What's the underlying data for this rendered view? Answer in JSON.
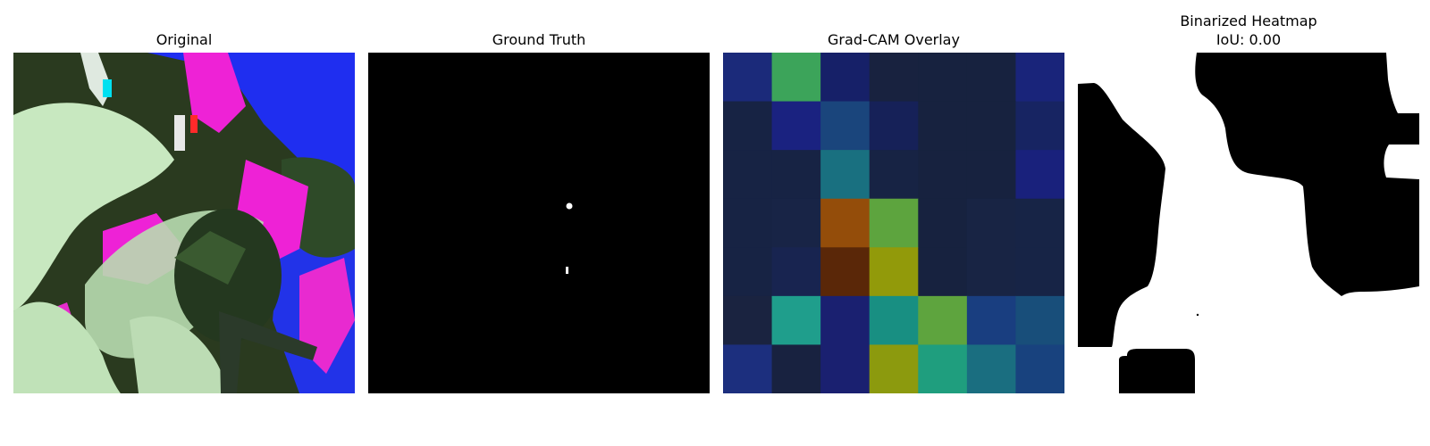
{
  "panels": [
    {
      "title": "Original"
    },
    {
      "title": "Ground Truth"
    },
    {
      "title": "Grad-CAM Overlay"
    },
    {
      "title": "Binarized Heatmap",
      "subtitle": "IoU: 0.00"
    }
  ],
  "gradcam": {
    "grid": [
      [
        "#1b2a7a",
        "#3ca45a",
        "#162068",
        "#18223f",
        "#17223f",
        "#17223f",
        "#19247a"
      ],
      [
        "#172344",
        "#1a2280",
        "#1a457c",
        "#162158",
        "#17223f",
        "#17223f",
        "#172462"
      ],
      [
        "#172344",
        "#172344",
        "#197080",
        "#172344",
        "#17223f",
        "#17223f",
        "#19217c"
      ],
      [
        "#172344",
        "#182446",
        "#944d0a",
        "#5da43e",
        "#17223f",
        "#182444",
        "#172446"
      ],
      [
        "#172344",
        "#182450",
        "#5a2708",
        "#929a0a",
        "#17223f",
        "#182444",
        "#172446"
      ],
      [
        "#1a2340",
        "#1f9e8c",
        "#1a2070",
        "#188f82",
        "#5ea43e",
        "#193e80",
        "#184e7a"
      ],
      [
        "#1c2f7e",
        "#182240",
        "#1a2070",
        "#8c9a0e",
        "#1f9e7e",
        "#1a6e80",
        "#18427e"
      ]
    ]
  }
}
